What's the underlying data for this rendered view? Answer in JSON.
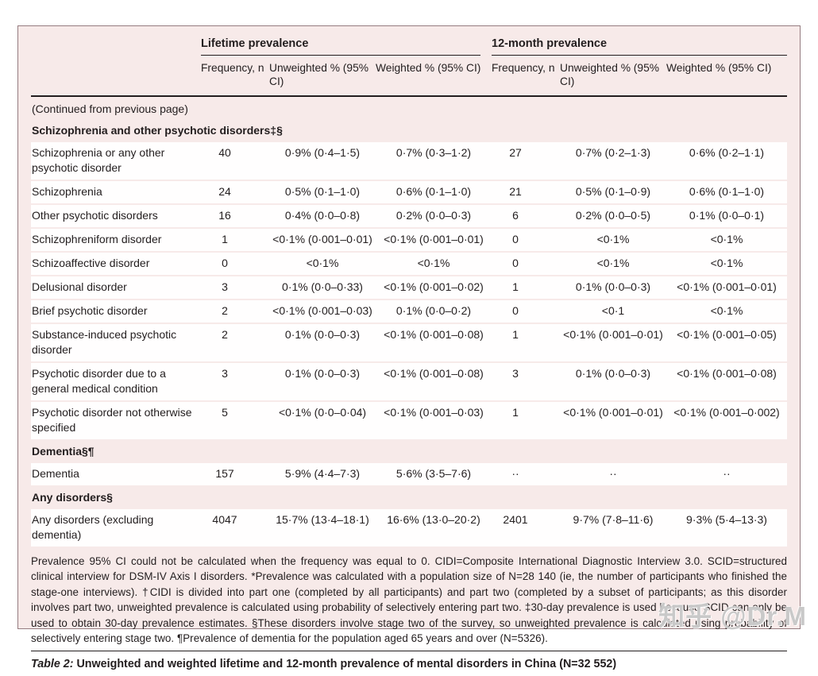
{
  "table": {
    "continued_note": "(Continued from previous page)",
    "group_headers": [
      "Lifetime prevalence",
      "12-month prevalence"
    ],
    "column_headers": [
      "Frequency, n",
      "Unweighted % (95% CI)",
      "Weighted % (95% CI)",
      "Frequency, n",
      "Unweighted % (95% CI)",
      "Weighted % (95% CI)"
    ],
    "sections": [
      {
        "title": "Schizophrenia and other psychotic disorders‡§",
        "rows": [
          {
            "label": "Schizophrenia or any other psychotic disorder",
            "cells": [
              "40",
              "0·9% (0·4–1·5)",
              "0·7% (0·3–1·2)",
              "27",
              "0·7% (0·2–1·3)",
              "0·6% (0·2–1·1)"
            ]
          },
          {
            "label": "Schizophrenia",
            "cells": [
              "24",
              "0·5% (0·1–1·0)",
              "0·6% (0·1–1·0)",
              "21",
              "0·5% (0·1–0·9)",
              "0·6% (0·1–1·0)"
            ]
          },
          {
            "label": "Other psychotic disorders",
            "cells": [
              "16",
              "0·4% (0·0–0·8)",
              "0·2% (0·0–0·3)",
              "6",
              "0·2% (0·0–0·5)",
              "0·1% (0·0–0·1)"
            ]
          },
          {
            "label": "Schizophreniform disorder",
            "cells": [
              "1",
              "<0·1% (0·001–0·01)",
              "<0·1% (0·001–0·01)",
              "0",
              "<0·1%",
              "<0·1%"
            ]
          },
          {
            "label": "Schizoaffective disorder",
            "cells": [
              "0",
              "<0·1%",
              "<0·1%",
              "0",
              "<0·1%",
              "<0·1%"
            ]
          },
          {
            "label": "Delusional disorder",
            "cells": [
              "3",
              "0·1% (0·0–0·33)",
              "<0·1% (0·001–0·02)",
              "1",
              "0·1% (0·0–0·3)",
              "<0·1% (0·001–0·01)"
            ]
          },
          {
            "label": "Brief psychotic disorder",
            "cells": [
              "2",
              "<0·1% (0·001–0·03)",
              "0·1% (0·0–0·2)",
              "0",
              "<0·1",
              "<0·1%"
            ]
          },
          {
            "label": "Substance-induced psychotic disorder",
            "cells": [
              "2",
              "0·1% (0·0–0·3)",
              "<0·1% (0·001–0·08)",
              "1",
              "<0·1% (0·001–0·01)",
              "<0·1% (0·001–0·05)"
            ]
          },
          {
            "label": "Psychotic disorder due to a general medical condition",
            "cells": [
              "3",
              "0·1% (0·0–0·3)",
              "<0·1% (0·001–0·08)",
              "3",
              "0·1% (0·0–0·3)",
              "<0·1% (0·001–0·08)"
            ]
          },
          {
            "label": "Psychotic disorder not otherwise specified",
            "cells": [
              "5",
              "<0·1% (0·0–0·04)",
              "<0·1% (0·001–0·03)",
              "1",
              "<0·1% (0·001–0·01)",
              "<0·1% (0·001–0·002)"
            ]
          }
        ]
      },
      {
        "title": "Dementia§¶",
        "rows": [
          {
            "label": "Dementia",
            "cells": [
              "157",
              "5·9% (4·4–7·3)",
              "5·6% (3·5–7·6)",
              "··",
              "··",
              "··"
            ]
          }
        ]
      },
      {
        "title": "Any disorders§",
        "rows": [
          {
            "label": "Any disorders (excluding dementia)",
            "cells": [
              "4047",
              "15·7% (13·4–18·1)",
              "16·6% (13·0–20·2)",
              "2401",
              "9·7% (7·8–11·6)",
              "9·3% (5·4–13·3)"
            ]
          }
        ]
      }
    ],
    "footnote": "Prevalence 95% CI could not be calculated when the frequency was equal to 0. CIDI=Composite International Diagnostic Interview 3.0. SCID=structured clinical interview for DSM-IV Axis I disorders. *Prevalence was calculated with a population size of N=28 140 (ie, the number of participants who finished the stage-one interviews). †CIDI is divided into part one (completed by all participants) and part two (completed by a subset of participants; as this disorder involves part two, unweighted prevalence is calculated using probability of selectively entering part two. ‡30-day prevalence is used because SCID can only be used to obtain 30-day prevalence estimates. §These disorders involve stage two of the survey, so unweighted prevalence is calculated using probability of selectively entering stage two. ¶Prevalence of dementia for the population aged 65 years and over (N=5326).",
    "caption_label": "Table 2:",
    "caption_text": "Unweighted and weighted lifetime and 12-month prevalence of mental disorders in China (N=32 552)"
  },
  "watermark": "知乎 @Dr.M",
  "colors": {
    "panel_background": "#f7eae9",
    "data_row_background": "#fffefe",
    "rule": "#231e1f",
    "panel_border": "#957c80",
    "text": "#221d1e",
    "watermark": "#c3c3c3"
  }
}
